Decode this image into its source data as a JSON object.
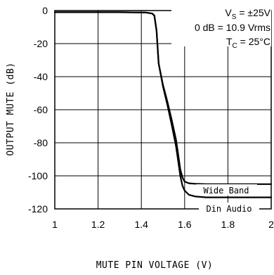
{
  "chart_data": {
    "type": "line",
    "title": "",
    "xlabel": "MUTE PIN VOLTAGE (V)",
    "ylabel": "OUTPUT MUTE (dB)",
    "xlim": [
      1,
      2
    ],
    "ylim": [
      -120,
      0
    ],
    "x_ticks": [
      1,
      1.2,
      1.4,
      1.6,
      1.8,
      2
    ],
    "x_tick_labels": [
      "1",
      "1.2",
      "1.4",
      "1.6",
      "1.8",
      "2"
    ],
    "y_ticks": [
      0,
      -20,
      -40,
      -60,
      -80,
      -100,
      -120
    ],
    "y_tick_labels": [
      "0",
      "-20",
      "-40",
      "-60",
      "-80",
      "-100",
      "-120"
    ],
    "grid": true,
    "annotations": {
      "supply_main": "V",
      "supply_sub": "S",
      "supply_value": " = ±25V",
      "reference": "0 dB = 10.9 Vrms",
      "temp_main": "T",
      "temp_sub": "C",
      "temp_value": " = 25°C"
    },
    "series": [
      {
        "name": "Wide Band",
        "x": [
          1.0,
          1.3,
          1.42,
          1.45,
          1.46,
          1.47,
          1.48,
          1.5,
          1.52,
          1.54,
          1.56,
          1.57,
          1.58,
          1.59,
          1.6,
          1.62,
          1.65,
          1.7,
          1.8,
          1.9,
          2.0
        ],
        "y": [
          -1,
          -1,
          -1.2,
          -1.8,
          -3,
          -12,
          -32,
          -45,
          -55,
          -66,
          -78,
          -87,
          -96,
          -101,
          -103.5,
          -104.5,
          -104.8,
          -105,
          -105,
          -105,
          -105
        ]
      },
      {
        "name": "Din Audio",
        "x": [
          1.0,
          1.3,
          1.42,
          1.45,
          1.46,
          1.47,
          1.48,
          1.5,
          1.52,
          1.54,
          1.56,
          1.57,
          1.58,
          1.59,
          1.6,
          1.62,
          1.65,
          1.7,
          1.8,
          1.9,
          2.0
        ],
        "y": [
          -1,
          -1,
          -1.2,
          -1.8,
          -3,
          -12,
          -32,
          -46,
          -57,
          -69,
          -82,
          -91,
          -100,
          -106,
          -109,
          -111.5,
          -112.5,
          -113,
          -113,
          -113,
          -113
        ]
      }
    ]
  }
}
